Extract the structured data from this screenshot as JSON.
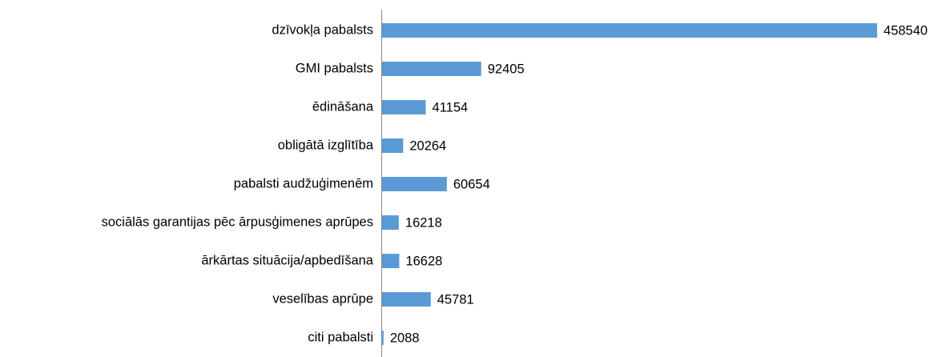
{
  "chart_data": {
    "type": "hbar",
    "categories": [
      "dzīvokļa pabalsts",
      "GMI pabalsts",
      "ēdināšana",
      "obligātā izglītība",
      "pabalsti audžuģimenēm",
      "sociālās garantijas pēc ārpusģimenes aprūpes",
      "ārkārtas situācija/apbedīšana",
      "veselības aprūpe",
      "citi pabalsti"
    ],
    "values": [
      458540,
      92405,
      41154,
      20264,
      60654,
      16218,
      16628,
      45781,
      2088
    ],
    "color": "#5b9bd5",
    "xlim": [
      0,
      500000
    ]
  }
}
